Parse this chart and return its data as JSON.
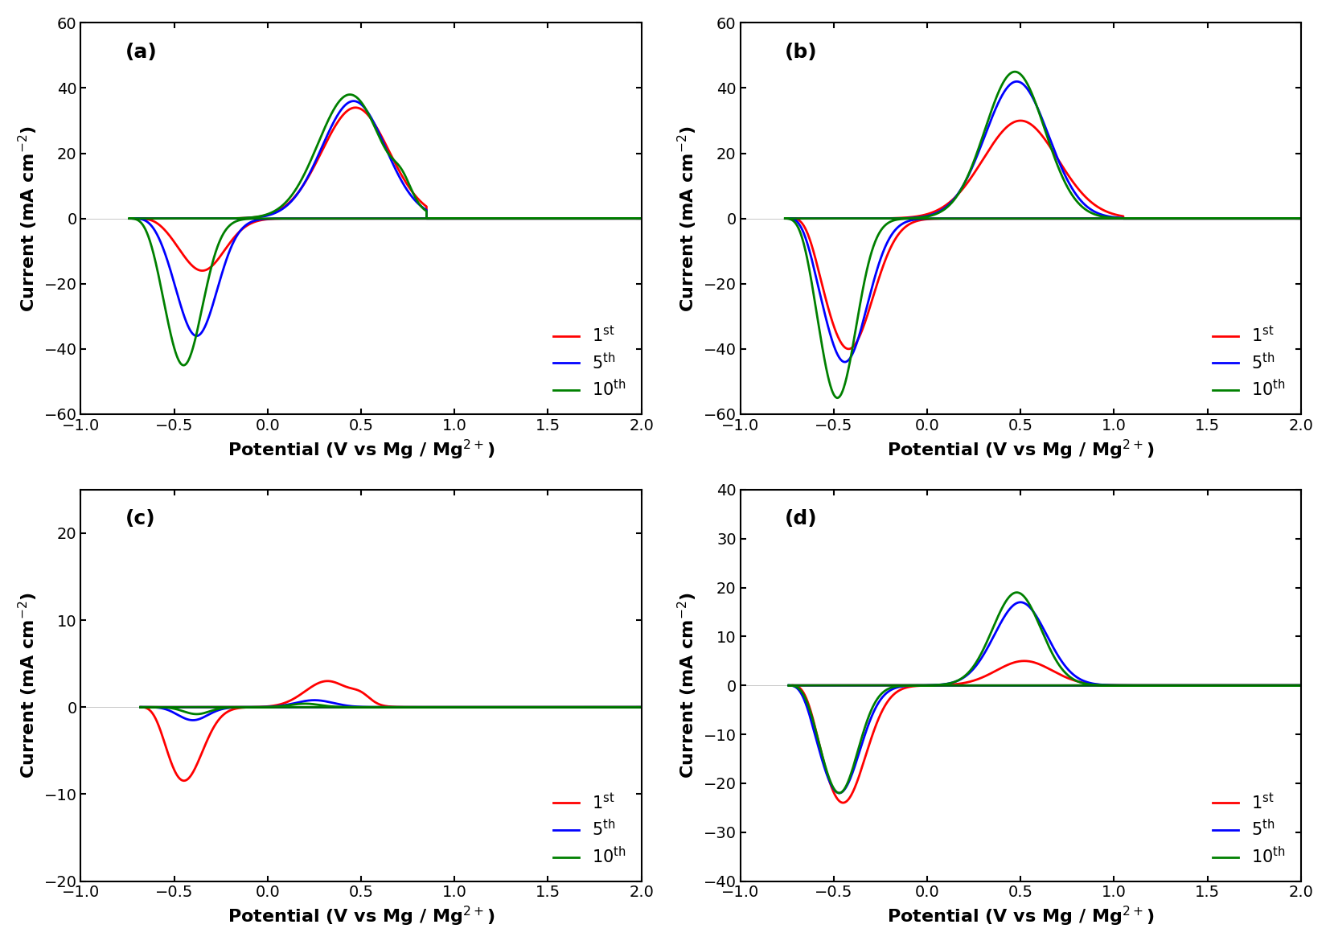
{
  "panels": [
    "(a)",
    "(b)",
    "(c)",
    "(d)"
  ],
  "colors": {
    "1st": "#ff0000",
    "5th": "#0000ff",
    "10th": "#008000"
  },
  "legend_labels": [
    "1$^\\mathrm{st}$",
    "5$^\\mathrm{th}$",
    "10$^\\mathrm{th}$"
  ],
  "xlabel": "Potential (V vs Mg / Mg$^{2+}$)",
  "ylabel": "Current (mA cm$^{-2}$)",
  "xlim": [
    -1.0,
    2.0
  ],
  "panel_a": {
    "ylim": [
      -60,
      60
    ],
    "yticks": [
      -60,
      -40,
      -20,
      0,
      20,
      40,
      60
    ]
  },
  "panel_b": {
    "ylim": [
      -60,
      60
    ],
    "yticks": [
      -60,
      -40,
      -20,
      0,
      20,
      40,
      60
    ]
  },
  "panel_c": {
    "ylim": [
      -20,
      25
    ],
    "yticks": [
      -20,
      -10,
      0,
      10,
      20
    ]
  },
  "panel_d": {
    "ylim": [
      -40,
      40
    ],
    "yticks": [
      -40,
      -30,
      -20,
      -10,
      0,
      10,
      20,
      30,
      40
    ]
  },
  "xticks": [
    -1.0,
    -0.5,
    0.0,
    0.5,
    1.0,
    1.5,
    2.0
  ],
  "linewidth": 2.0,
  "font_size": 14,
  "label_font_size": 16,
  "tick_font_size": 14
}
